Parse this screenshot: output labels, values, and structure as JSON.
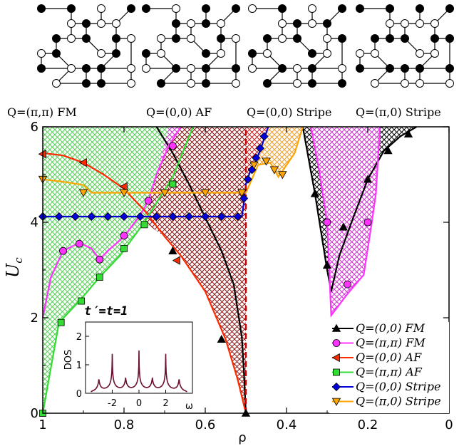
{
  "panel_titles": [
    "Q=(π,π) FM",
    "Q=(0,0) AF",
    "Q=(0,0) Stripe",
    "Q=(π,0) Stripe"
  ],
  "annotation": "t′=t=1",
  "colors": {
    "fm00": "#000000",
    "fmpp": "#ff33ff",
    "af00": "#ff2a00",
    "afpp": "#33dd33",
    "st00": "#0000dd",
    "stp0": "#ffa500",
    "fill_green": "#88ee88",
    "fill_brown": "#b03020",
    "fill_pink": "#ee66ee",
    "fill_orange": "#ffcc66"
  },
  "chart_data": [
    {
      "type": "line",
      "xlabel": "ρ",
      "ylabel": "U_c",
      "xlim": [
        1.0,
        0.0
      ],
      "ylim": [
        0,
        6
      ],
      "x_ticks": [
        "1",
        "0.8",
        "0.6",
        "0.4",
        "0.2",
        "0"
      ],
      "y_ticks": [
        "0",
        "2",
        "4",
        "6"
      ],
      "legend_position": "bottom-right",
      "series": [
        {
          "key": "fm00",
          "name": "Q=(0,0) FM",
          "marker": "triangle-up",
          "points": [
            [
              0.72,
              6.0
            ],
            [
              0.68,
              5.45
            ],
            [
              0.64,
              4.8
            ],
            [
              0.6,
              4.1
            ],
            [
              0.56,
              3.4
            ],
            [
              0.53,
              2.7
            ],
            [
              0.51,
              1.6
            ],
            [
              0.505,
              0.9
            ],
            [
              0.5,
              0.0
            ]
          ],
          "marker_points": [
            [
              0.68,
              3.4
            ],
            [
              0.56,
              1.55
            ],
            [
              0.5,
              0.0
            ]
          ],
          "branch2": [
            [
              0.36,
              6.0
            ],
            [
              0.33,
              4.6
            ],
            [
              0.3,
              3.0
            ],
            [
              0.29,
              2.55
            ],
            [
              0.27,
              3.3
            ],
            [
              0.24,
              4.0
            ],
            [
              0.2,
              4.9
            ],
            [
              0.16,
              5.5
            ],
            [
              0.12,
              5.8
            ],
            [
              0.08,
              6.0
            ]
          ],
          "branch2_markers": [
            [
              0.33,
              4.6
            ],
            [
              0.3,
              3.1
            ],
            [
              0.26,
              3.9
            ],
            [
              0.2,
              4.9
            ],
            [
              0.15,
              5.5
            ],
            [
              0.1,
              5.85
            ]
          ]
        },
        {
          "key": "fmpp",
          "name": "Q=(π,π) FM",
          "marker": "circle",
          "points": [
            [
              1.0,
              2.0
            ],
            [
              0.98,
              2.85
            ],
            [
              0.95,
              3.4
            ],
            [
              0.91,
              3.57
            ],
            [
              0.88,
              3.45
            ],
            [
              0.86,
              3.22
            ],
            [
              0.84,
              3.4
            ],
            [
              0.8,
              3.7
            ],
            [
              0.76,
              4.15
            ],
            [
              0.74,
              4.45
            ],
            [
              0.72,
              5.0
            ],
            [
              0.69,
              5.6
            ],
            [
              0.66,
              6.0
            ]
          ],
          "marker_points": [
            [
              0.95,
              3.4
            ],
            [
              0.91,
              3.55
            ],
            [
              0.86,
              3.22
            ],
            [
              0.8,
              3.72
            ],
            [
              0.74,
              4.45
            ],
            [
              0.68,
              5.6
            ]
          ],
          "branch2": [
            [
              0.34,
              6.0
            ],
            [
              0.32,
              5.1
            ],
            [
              0.3,
              4.0
            ],
            [
              0.29,
              2.05
            ],
            [
              0.25,
              2.5
            ],
            [
              0.21,
              2.9
            ],
            [
              0.19,
              4.0
            ],
            [
              0.18,
              4.6
            ],
            [
              0.17,
              6.0
            ]
          ],
          "branch2_markers": [
            [
              0.3,
              4.0
            ],
            [
              0.25,
              2.7
            ],
            [
              0.2,
              4.0
            ]
          ]
        },
        {
          "key": "af00",
          "name": "Q=(0,0) AF",
          "marker": "triangle-left",
          "points": [
            [
              1.0,
              5.45
            ],
            [
              0.95,
              5.4
            ],
            [
              0.9,
              5.25
            ],
            [
              0.85,
              5.0
            ],
            [
              0.8,
              4.7
            ],
            [
              0.75,
              4.25
            ],
            [
              0.7,
              3.7
            ],
            [
              0.66,
              3.3
            ],
            [
              0.6,
              2.55
            ],
            [
              0.55,
              1.55
            ],
            [
              0.52,
              0.7
            ],
            [
              0.5,
              0.0
            ]
          ],
          "marker_points": [
            [
              1.0,
              5.43
            ],
            [
              0.9,
              5.25
            ],
            [
              0.8,
              4.75
            ],
            [
              0.67,
              3.2
            ]
          ]
        },
        {
          "key": "afpp",
          "name": "Q=(π,π) AF",
          "marker": "square",
          "points": [
            [
              1.0,
              0.0
            ],
            [
              0.96,
              1.9
            ],
            [
              0.91,
              2.35
            ],
            [
              0.86,
              2.85
            ],
            [
              0.81,
              3.3
            ],
            [
              0.75,
              4.0
            ],
            [
              0.68,
              4.95
            ],
            [
              0.63,
              6.0
            ]
          ],
          "marker_points": [
            [
              1.0,
              0.0
            ],
            [
              0.955,
              1.9
            ],
            [
              0.905,
              2.35
            ],
            [
              0.86,
              2.85
            ],
            [
              0.8,
              3.45
            ],
            [
              0.75,
              3.95
            ],
            [
              0.68,
              4.8
            ]
          ]
        },
        {
          "key": "st00",
          "name": "Q=(0,0) Stripe",
          "marker": "diamond",
          "points": [
            [
              1.0,
              4.12
            ],
            [
              0.9,
              4.12
            ],
            [
              0.8,
              4.12
            ],
            [
              0.7,
              4.12
            ],
            [
              0.6,
              4.12
            ],
            [
              0.51,
              4.12
            ],
            [
              0.505,
              4.4
            ],
            [
              0.5,
              4.8
            ],
            [
              0.49,
              5.05
            ],
            [
              0.475,
              5.3
            ],
            [
              0.465,
              5.5
            ],
            [
              0.455,
              5.75
            ],
            [
              0.445,
              6.0
            ]
          ],
          "marker_points": [
            [
              1.0,
              4.12
            ],
            [
              0.96,
              4.12
            ],
            [
              0.92,
              4.12
            ],
            [
              0.88,
              4.12
            ],
            [
              0.84,
              4.12
            ],
            [
              0.8,
              4.12
            ],
            [
              0.76,
              4.12
            ],
            [
              0.72,
              4.12
            ],
            [
              0.68,
              4.12
            ],
            [
              0.64,
              4.12
            ],
            [
              0.6,
              4.12
            ],
            [
              0.56,
              4.12
            ],
            [
              0.52,
              4.12
            ],
            [
              0.505,
              4.5
            ],
            [
              0.495,
              4.9
            ],
            [
              0.485,
              5.1
            ],
            [
              0.475,
              5.35
            ],
            [
              0.465,
              5.55
            ],
            [
              0.455,
              5.8
            ]
          ]
        },
        {
          "key": "stp0",
          "name": "Q=(π,0) Stripe",
          "marker": "triangle-down",
          "points": [
            [
              1.0,
              4.9
            ],
            [
              0.95,
              4.85
            ],
            [
              0.9,
              4.78
            ],
            [
              0.88,
              4.62
            ],
            [
              0.8,
              4.62
            ],
            [
              0.7,
              4.62
            ],
            [
              0.6,
              4.62
            ],
            [
              0.5,
              4.62
            ],
            [
              0.47,
              5.2
            ],
            [
              0.44,
              5.25
            ],
            [
              0.42,
              4.95
            ],
            [
              0.4,
              5.2
            ],
            [
              0.38,
              5.45
            ],
            [
              0.36,
              6.0
            ]
          ],
          "marker_points": [
            [
              1.0,
              4.9
            ],
            [
              0.9,
              4.62
            ],
            [
              0.8,
              4.62
            ],
            [
              0.7,
              4.62
            ],
            [
              0.6,
              4.62
            ],
            [
              0.51,
              4.62
            ],
            [
              0.48,
              5.2
            ],
            [
              0.45,
              5.28
            ],
            [
              0.43,
              5.1
            ],
            [
              0.41,
              5.0
            ]
          ]
        }
      ]
    },
    {
      "type": "line",
      "xlabel": "ω",
      "ylabel": "DOS",
      "xlim": [
        -4,
        4
      ],
      "ylim": [
        0,
        2.5
      ],
      "x_ticks": [
        "-2",
        "0",
        "2"
      ],
      "y_ticks": [
        "0",
        "1",
        "2"
      ],
      "peaks": [
        [
          -2.0,
          2.2
        ],
        [
          0.0,
          2.2
        ],
        [
          2.0,
          2.2
        ],
        [
          -3.0,
          0.8
        ],
        [
          -1.0,
          0.8
        ],
        [
          1.0,
          0.8
        ],
        [
          3.0,
          0.8
        ]
      ]
    }
  ]
}
